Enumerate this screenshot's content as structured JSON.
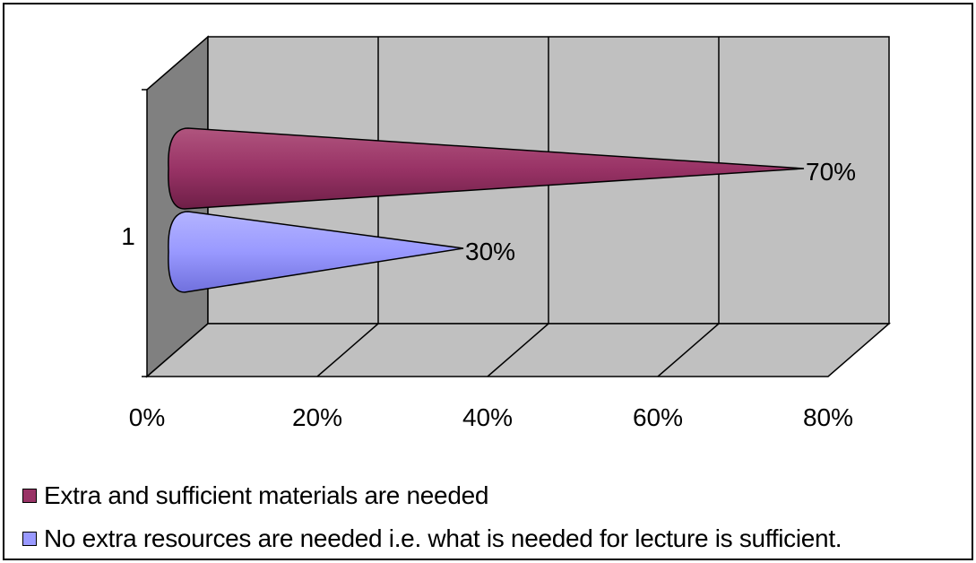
{
  "chart_data": {
    "type": "bar",
    "style": "3d-cone-horizontal",
    "categories": [
      "1"
    ],
    "series": [
      {
        "name": "Extra and sufficient materials are needed",
        "values": [
          0.7
        ],
        "color": "#993366",
        "label": "70%"
      },
      {
        "name": "No extra resources are needed i.e. what is needed for lecture is sufficient.",
        "values": [
          0.3
        ],
        "color": "#9999FF",
        "label": "30%"
      }
    ],
    "x_ticks": [
      "0%",
      "20%",
      "40%",
      "60%",
      "80%"
    ],
    "xlim": [
      0,
      0.8
    ],
    "grid": true,
    "legend_position": "bottom",
    "colors": {
      "wall": "#C0C0C0",
      "side_wall": "#808080",
      "floor": "#C0C0C0"
    }
  }
}
